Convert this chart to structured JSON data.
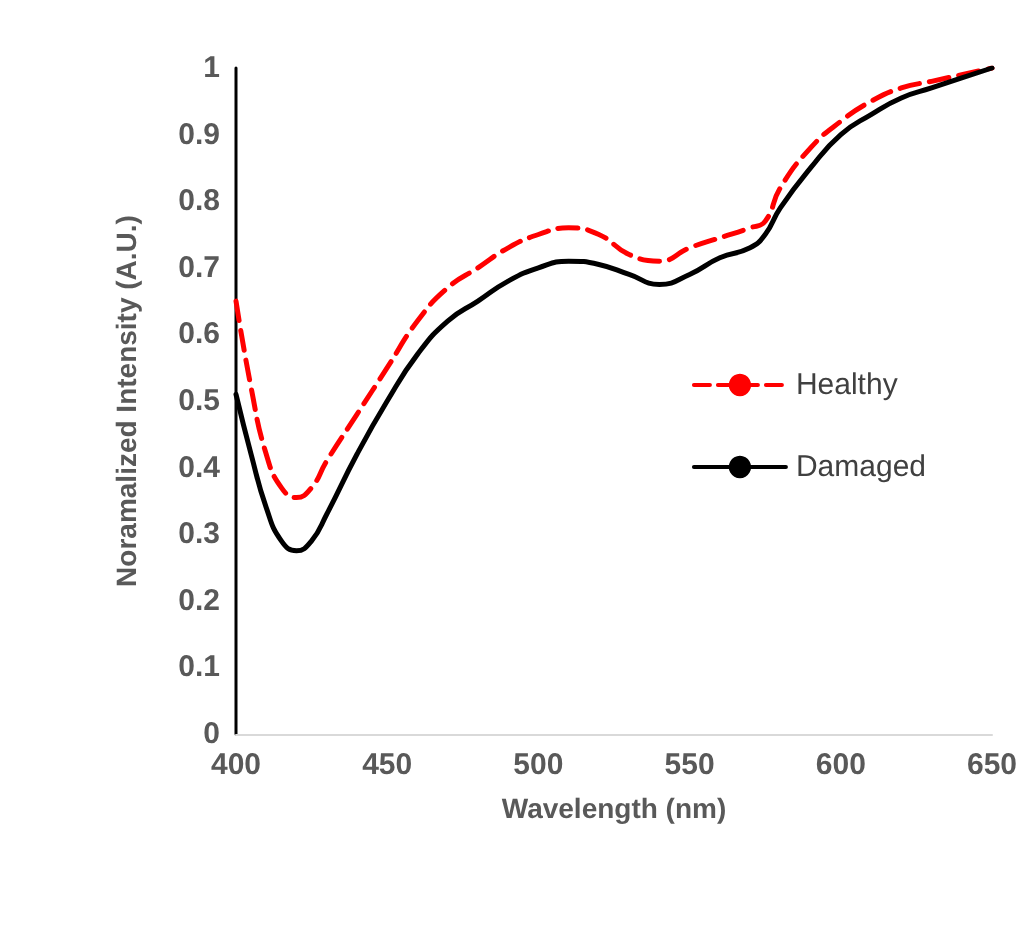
{
  "chart_data": {
    "type": "line",
    "xlabel": "Wavelength (nm)",
    "ylabel": "Noramalized Intensity (A.U.)",
    "x": [
      400,
      405,
      410,
      415,
      420,
      425,
      430,
      440,
      450,
      460,
      470,
      480,
      490,
      500,
      510,
      520,
      530,
      540,
      550,
      560,
      570,
      575,
      580,
      590,
      600,
      610,
      620,
      630,
      640,
      650
    ],
    "series": [
      {
        "name": "Healthy",
        "color": "#ff0000",
        "line_style": "dashed",
        "values": [
          0.65,
          0.52,
          0.42,
          0.37,
          0.355,
          0.37,
          0.41,
          0.48,
          0.55,
          0.62,
          0.67,
          0.7,
          0.73,
          0.75,
          0.76,
          0.75,
          0.72,
          0.71,
          0.73,
          0.745,
          0.76,
          0.77,
          0.82,
          0.88,
          0.92,
          0.95,
          0.97,
          0.98,
          0.99,
          1.0
        ]
      },
      {
        "name": "Damaged",
        "color": "#000000",
        "line_style": "solid",
        "values": [
          0.51,
          0.42,
          0.34,
          0.29,
          0.275,
          0.29,
          0.33,
          0.42,
          0.5,
          0.57,
          0.62,
          0.65,
          0.68,
          0.7,
          0.71,
          0.705,
          0.69,
          0.675,
          0.69,
          0.715,
          0.73,
          0.75,
          0.79,
          0.85,
          0.9,
          0.93,
          0.955,
          0.97,
          0.985,
          1.0
        ]
      }
    ],
    "xlim": [
      400,
      650
    ],
    "xticks": [
      400,
      450,
      500,
      550,
      600,
      650
    ],
    "ylim": [
      0,
      1
    ],
    "yticks": [
      0,
      0.1,
      0.2,
      0.3,
      0.4,
      0.5,
      0.6,
      0.7,
      0.8,
      0.9,
      1
    ],
    "grid": false,
    "legend": "right",
    "marker": "none"
  }
}
